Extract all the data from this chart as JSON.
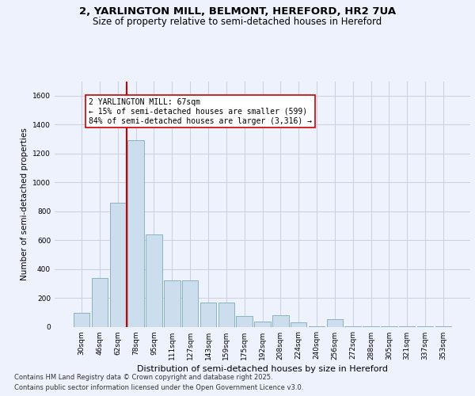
{
  "title_line1": "2, YARLINGTON MILL, BELMONT, HEREFORD, HR2 7UA",
  "title_line2": "Size of property relative to semi-detached houses in Hereford",
  "xlabel": "Distribution of semi-detached houses by size in Hereford",
  "ylabel": "Number of semi-detached properties",
  "categories": [
    "30sqm",
    "46sqm",
    "62sqm",
    "78sqm",
    "95sqm",
    "111sqm",
    "127sqm",
    "143sqm",
    "159sqm",
    "175sqm",
    "192sqm",
    "208sqm",
    "224sqm",
    "240sqm",
    "256sqm",
    "272sqm",
    "288sqm",
    "305sqm",
    "321sqm",
    "337sqm",
    "353sqm"
  ],
  "values": [
    95,
    340,
    860,
    1290,
    640,
    320,
    320,
    170,
    165,
    75,
    35,
    80,
    30,
    5,
    50,
    5,
    5,
    5,
    5,
    5,
    5
  ],
  "bar_color": "#ccdded",
  "bar_edge_color": "#7aaabb",
  "vline_color": "#cc0000",
  "annotation_text": "2 YARLINGTON MILL: 67sqm\n← 15% of semi-detached houses are smaller (599)\n84% of semi-detached houses are larger (3,316) →",
  "annotation_box_color": "#ffffff",
  "annotation_box_edge": "#cc0000",
  "ylim": [
    0,
    1700
  ],
  "yticks": [
    0,
    200,
    400,
    600,
    800,
    1000,
    1200,
    1400,
    1600
  ],
  "footer_line1": "Contains HM Land Registry data © Crown copyright and database right 2025.",
  "footer_line2": "Contains public sector information licensed under the Open Government Licence v3.0.",
  "background_color": "#eef2fc",
  "grid_color": "#c8cfe0"
}
